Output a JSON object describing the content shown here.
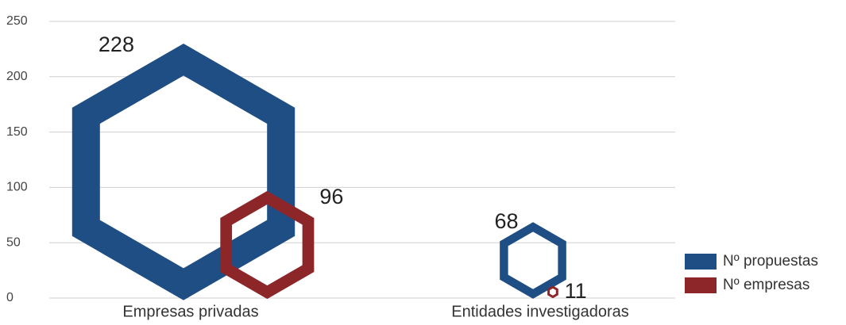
{
  "chart_data": {
    "type": "hexagon",
    "categories": [
      "Empresas privadas",
      "Entidades investigadoras"
    ],
    "series": [
      {
        "name": "Nº propuestas",
        "color": "#1f4e85",
        "values": [
          228,
          68
        ]
      },
      {
        "name": "Nº empresas",
        "color": "#8c2629",
        "values": [
          96,
          11
        ]
      }
    ],
    "ylim": [
      0,
      250
    ],
    "yticks": [
      0,
      50,
      100,
      150,
      200,
      250
    ],
    "grid": true,
    "legend": "right"
  }
}
